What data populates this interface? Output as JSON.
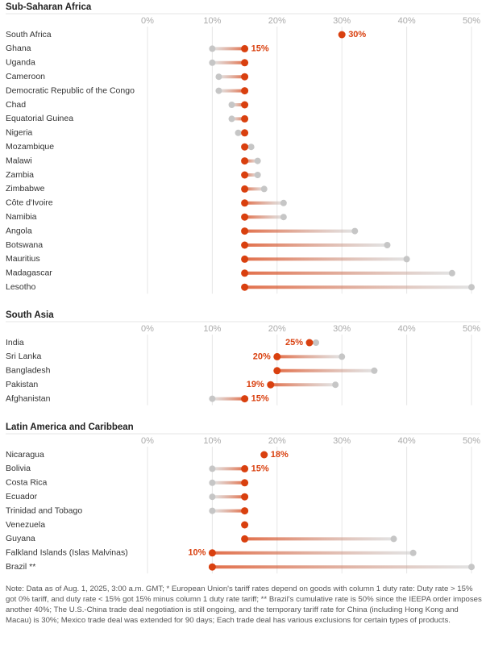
{
  "chart_data": [
    {
      "type": "dumbbell",
      "title": "Sub-Saharan Africa",
      "categories": [
        "South Africa",
        "Ghana",
        "Uganda",
        "Cameroon",
        "Democratic Republic of the Congo",
        "Chad",
        "Equatorial Guinea",
        "Nigeria",
        "Mozambique",
        "Malawi",
        "Zambia",
        "Zimbabwe",
        "Côte d'Ivoire",
        "Namibia",
        "Angola",
        "Botswana",
        "Mauritius",
        "Madagascar",
        "Lesotho"
      ],
      "series": [
        {
          "color": "#c6c6c6",
          "values": [
            30,
            10,
            10,
            11,
            11,
            13,
            13,
            14,
            16,
            17,
            17,
            18,
            21,
            21,
            32,
            37,
            40,
            47,
            50
          ]
        },
        {
          "color": "#d9400f",
          "values": [
            30,
            15,
            15,
            15,
            15,
            15,
            15,
            15,
            15,
            15,
            15,
            15,
            15,
            15,
            15,
            15,
            15,
            15,
            15
          ],
          "value_labels": [
            "30%",
            "15%",
            null,
            null,
            null,
            null,
            null,
            null,
            null,
            null,
            null,
            null,
            null,
            null,
            null,
            null,
            null,
            null,
            null
          ]
        }
      ],
      "xlim": [
        0,
        50
      ],
      "xticks": [
        {
          "value": 0,
          "label": "0%"
        },
        {
          "value": 10,
          "label": "10%"
        },
        {
          "value": 20,
          "label": "20%"
        },
        {
          "value": 30,
          "label": "30%"
        },
        {
          "value": 40,
          "label": "40%"
        },
        {
          "value": 50,
          "label": "50%"
        }
      ],
      "grid": true
    },
    {
      "type": "dumbbell",
      "title": "South Asia",
      "categories": [
        "India",
        "Sri Lanka",
        "Bangladesh",
        "Pakistan",
        "Afghanistan"
      ],
      "series": [
        {
          "color": "#c6c6c6",
          "values": [
            26,
            30,
            35,
            29,
            10
          ]
        },
        {
          "color": "#d9400f",
          "values": [
            25,
            20,
            20,
            19,
            15
          ],
          "value_labels": [
            "25%",
            "20%",
            null,
            "19%",
            "15%"
          ]
        }
      ],
      "xlim": [
        0,
        50
      ],
      "xticks": [
        {
          "value": 0,
          "label": "0%"
        },
        {
          "value": 10,
          "label": "10%"
        },
        {
          "value": 20,
          "label": "20%"
        },
        {
          "value": 30,
          "label": "30%"
        },
        {
          "value": 40,
          "label": "40%"
        },
        {
          "value": 50,
          "label": "50%"
        }
      ],
      "grid": true
    },
    {
      "type": "dumbbell",
      "title": "Latin America and Caribbean",
      "categories": [
        "Nicaragua",
        "Bolivia",
        "Costa Rica",
        "Ecuador",
        "Trinidad and Tobago",
        "Venezuela",
        "Guyana",
        "Falkland Islands (Islas Malvinas)",
        "Brazil **"
      ],
      "series": [
        {
          "color": "#c6c6c6",
          "values": [
            18,
            10,
            10,
            10,
            10,
            15,
            38,
            41,
            50
          ]
        },
        {
          "color": "#d9400f",
          "values": [
            18,
            15,
            15,
            15,
            15,
            15,
            15,
            10,
            10
          ],
          "value_labels": [
            "18%",
            "15%",
            null,
            null,
            null,
            null,
            null,
            "10%",
            null
          ]
        }
      ],
      "xlim": [
        0,
        50
      ],
      "xticks": [
        {
          "value": 0,
          "label": "0%"
        },
        {
          "value": 10,
          "label": "10%"
        },
        {
          "value": 20,
          "label": "20%"
        },
        {
          "value": 30,
          "label": "30%"
        },
        {
          "value": 40,
          "label": "40%"
        },
        {
          "value": 50,
          "label": "50%"
        }
      ],
      "grid": true
    }
  ],
  "note": "Note: Data as of Aug. 1, 2025, 3:00 a.m. GMT; * European Union's tariff rates depend on goods with column 1 duty rate: Duty rate > 15% got 0% tariff, and duty rate < 15% got 15% minus column 1 duty rate tariff; ** Brazil's cumulative rate is 50% since the IEEPA order imposes another 40%; The U.S.-China trade deal negotiation is still ongoing, and the temporary tariff rate for China (including Hong Kong and Macau) is 30%; Mexico trade deal was extended for 90 days; Each trade deal has various exclusions for certain types of products."
}
